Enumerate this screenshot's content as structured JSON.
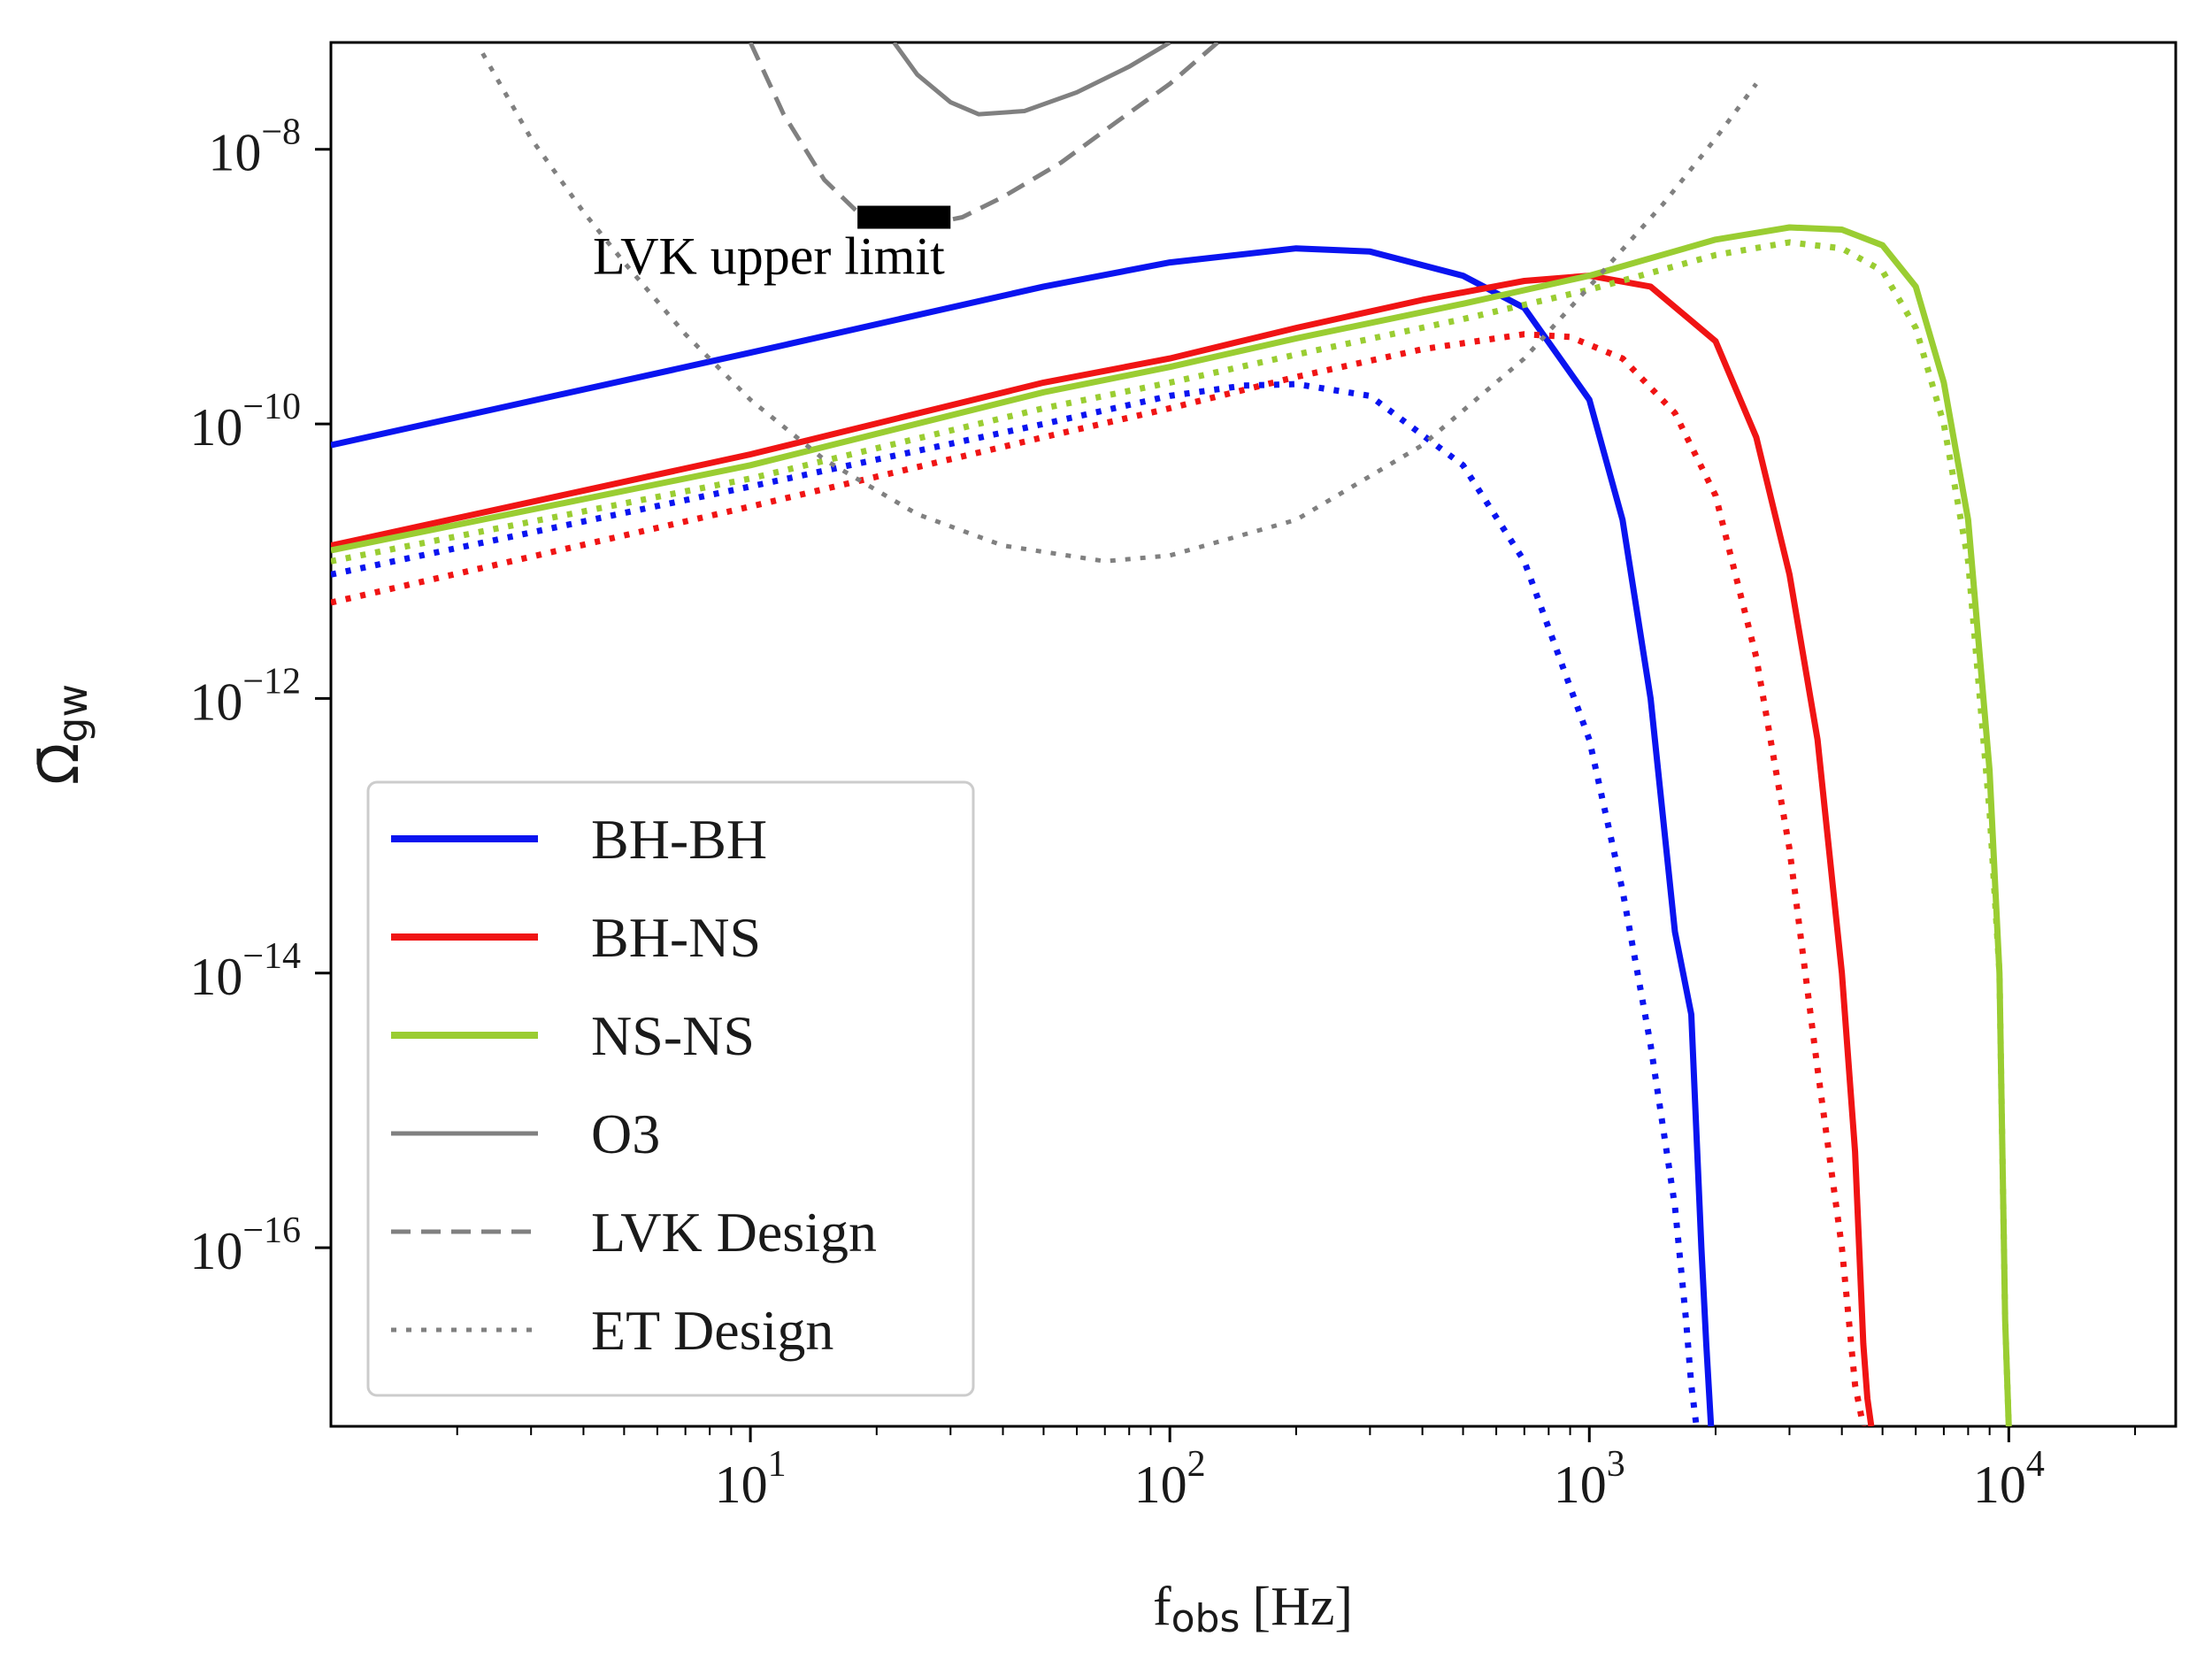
{
  "chart_data": {
    "type": "line",
    "xscale": "log",
    "yscale": "log",
    "xlim": [
      1,
      25000
    ],
    "ylim": [
      5e-18,
      6e-08
    ],
    "xlabel_main": "f",
    "xlabel_sub": "obs",
    "xlabel_unit": "[Hz]",
    "ylabel_main": "Ω̄",
    "ylabel_sub": "gw",
    "x_ticks": [
      {
        "value": 10,
        "base": "10",
        "exp": "1"
      },
      {
        "value": 100,
        "base": "10",
        "exp": "2"
      },
      {
        "value": 1000,
        "base": "10",
        "exp": "3"
      },
      {
        "value": 10000,
        "base": "10",
        "exp": "4"
      }
    ],
    "y_ticks": [
      {
        "value": 1e-08,
        "base": "10",
        "exp": "−8"
      },
      {
        "value": 1e-10,
        "base": "10",
        "exp": "−10"
      },
      {
        "value": 1e-12,
        "base": "10",
        "exp": "−12"
      },
      {
        "value": 1e-14,
        "base": "10",
        "exp": "−14"
      },
      {
        "value": 1e-16,
        "base": "10",
        "exp": "−16"
      }
    ],
    "annotation": {
      "text": "LVK upper limit",
      "x": [
        18,
        30
      ],
      "y": 3.2e-09
    },
    "legend": {
      "position": "lower-left",
      "entries": [
        {
          "label": "BH-BH",
          "color": "#0a14f0",
          "style": "solid"
        },
        {
          "label": "BH-NS",
          "color": "#f01414",
          "style": "solid"
        },
        {
          "label": "NS-NS",
          "color": "#9acd32",
          "style": "solid"
        },
        {
          "label": "O3",
          "color": "#808080",
          "style": "solid"
        },
        {
          "label": "LVK Design",
          "color": "#808080",
          "style": "dashed"
        },
        {
          "label": "ET Design",
          "color": "#808080",
          "style": "dotted"
        }
      ]
    },
    "series": [
      {
        "name": "BH-BH",
        "color": "#0a14f0",
        "style": "solid",
        "x": [
          1,
          10,
          50,
          100,
          200,
          300,
          500,
          700,
          1000,
          1200,
          1400,
          1600,
          1750,
          1850,
          1900,
          1950
        ],
        "y": [
          7e-11,
          3.3e-10,
          1e-09,
          1.5e-09,
          1.9e-09,
          1.8e-09,
          1.2e-09,
          7e-10,
          1.5e-10,
          2e-11,
          1e-12,
          2e-14,
          5e-15,
          1e-16,
          2e-17,
          5e-18
        ]
      },
      {
        "name": "BH-BH",
        "color": "#0a14f0",
        "style": "dotted",
        "x": [
          1,
          10,
          50,
          100,
          150,
          200,
          300,
          500,
          700,
          1000,
          1200,
          1400,
          1600,
          1700,
          1750,
          1800
        ],
        "y": [
          8e-12,
          3.5e-11,
          1e-10,
          1.6e-10,
          1.9e-10,
          1.95e-10,
          1.6e-10,
          5e-11,
          1e-11,
          5e-13,
          4e-14,
          3e-15,
          2e-16,
          3e-17,
          1e-17,
          5e-18
        ]
      },
      {
        "name": "BH-NS",
        "color": "#f01414",
        "style": "solid",
        "x": [
          1,
          10,
          50,
          100,
          200,
          400,
          700,
          1000,
          1400,
          2000,
          2500,
          3000,
          3500,
          4000,
          4300,
          4500,
          4600,
          4700
        ],
        "y": [
          1.3e-11,
          6e-11,
          2e-10,
          3e-10,
          5e-10,
          8e-10,
          1.1e-09,
          1.2e-09,
          1e-09,
          4e-10,
          8e-11,
          8e-12,
          5e-13,
          1e-14,
          5e-16,
          2e-17,
          8e-18,
          5e-18
        ]
      },
      {
        "name": "BH-NS",
        "color": "#f01414",
        "style": "dotted",
        "x": [
          1,
          10,
          50,
          100,
          200,
          400,
          700,
          900,
          1200,
          1600,
          2000,
          2500,
          3000,
          3500,
          4000,
          4300,
          4500
        ],
        "y": [
          5e-12,
          2.5e-11,
          8e-11,
          1.3e-10,
          2.2e-10,
          3.5e-10,
          4.5e-10,
          4.3e-10,
          3e-10,
          1.2e-10,
          3e-11,
          2e-12,
          8e-14,
          2e-15,
          1e-16,
          1e-17,
          5e-18
        ]
      },
      {
        "name": "NS-NS",
        "color": "#9acd32",
        "style": "solid",
        "x": [
          1,
          10,
          50,
          100,
          200,
          500,
          1000,
          2000,
          3000,
          4000,
          5000,
          6000,
          7000,
          8000,
          9000,
          9500,
          9800,
          10000
        ],
        "y": [
          1.2e-11,
          5e-11,
          1.7e-10,
          2.6e-10,
          4.2e-10,
          7.5e-10,
          1.2e-09,
          2.2e-09,
          2.7e-09,
          2.6e-09,
          2e-09,
          1e-09,
          2e-10,
          2e-11,
          3e-13,
          1e-14,
          3e-17,
          5e-18
        ]
      },
      {
        "name": "NS-NS",
        "color": "#9acd32",
        "style": "dotted",
        "x": [
          1,
          10,
          50,
          100,
          200,
          500,
          1000,
          2000,
          3000,
          4000,
          5000,
          6000,
          7000,
          8000,
          9000,
          9500,
          9800,
          10000
        ],
        "y": [
          1e-11,
          4e-11,
          1.3e-10,
          2e-10,
          3.2e-10,
          5.8e-10,
          9.5e-10,
          1.7e-09,
          2.1e-09,
          1.9e-09,
          1.3e-09,
          5e-10,
          1e-10,
          1e-11,
          1.5e-13,
          1e-14,
          3e-17,
          5e-18
        ]
      },
      {
        "name": "O3",
        "color": "#808080",
        "style": "solid",
        "x": [
          22,
          25,
          30,
          35,
          45,
          60,
          80,
          100
        ],
        "y": [
          6e-08,
          3.5e-08,
          2.2e-08,
          1.8e-08,
          1.9e-08,
          2.6e-08,
          4e-08,
          6e-08
        ]
      },
      {
        "name": "LVK Design",
        "color": "#808080",
        "style": "dashed",
        "x": [
          10,
          12,
          15,
          18,
          22,
          26,
          32,
          40,
          55,
          75,
          100,
          130
        ],
        "y": [
          6e-08,
          1.8e-08,
          6e-09,
          3.5e-09,
          2.8e-09,
          2.8e-09,
          3.2e-09,
          4.5e-09,
          8e-09,
          1.6e-08,
          3e-08,
          6e-08
        ]
      },
      {
        "name": "ET Design",
        "color": "#808080",
        "style": "dotted",
        "x": [
          2.3,
          3,
          4,
          5,
          7,
          10,
          15,
          25,
          40,
          70,
          100,
          200,
          400,
          700,
          1000,
          1500,
          2000,
          2500
        ],
        "y": [
          5e-08,
          1.2e-08,
          3.5e-09,
          1.5e-09,
          4.5e-10,
          1.5e-10,
          5.5e-11,
          2.2e-11,
          1.3e-11,
          1e-11,
          1.1e-11,
          2e-11,
          7e-11,
          3e-10,
          1e-09,
          4e-09,
          1.2e-08,
          3e-08
        ]
      }
    ]
  }
}
